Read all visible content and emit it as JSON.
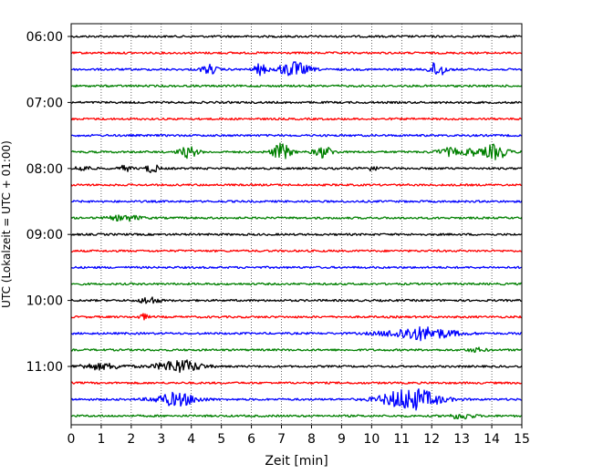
{
  "chart_data": {
    "type": "line",
    "xlabel": "Zeit  [min]",
    "ylabel": "UTC (Lokalzeit = UTC + 01:00)",
    "x_ticks": [
      "0",
      "1",
      "2",
      "3",
      "4",
      "5",
      "6",
      "7",
      "8",
      "9",
      "10",
      "11",
      "12",
      "13",
      "14",
      "15"
    ],
    "xlim": [
      0,
      15
    ],
    "y_ticks": [
      "06:00",
      "07:00",
      "08:00",
      "09:00",
      "10:00",
      "11:00"
    ],
    "trace_interval_min": 15,
    "trace_colors": [
      "#000000",
      "#ff0000",
      "#0000ff",
      "#008000"
    ],
    "grid": "vertical dotted at each minute",
    "traces": [
      {
        "start": "06:00",
        "color": "#000000",
        "bursts": []
      },
      {
        "start": "06:15",
        "color": "#ff0000",
        "bursts": []
      },
      {
        "start": "06:30",
        "color": "#0000ff",
        "bursts": [
          [
            4.6,
            0.25,
            5
          ],
          [
            6.3,
            0.2,
            6
          ],
          [
            7.4,
            0.5,
            8
          ],
          [
            12.2,
            0.25,
            9
          ]
        ]
      },
      {
        "start": "06:45",
        "color": "#008000",
        "bursts": []
      },
      {
        "start": "07:00",
        "color": "#000000",
        "bursts": []
      },
      {
        "start": "07:15",
        "color": "#ff0000",
        "bursts": []
      },
      {
        "start": "07:30",
        "color": "#0000ff",
        "bursts": []
      },
      {
        "start": "07:45",
        "color": "#008000",
        "bursts": [
          [
            3.9,
            0.3,
            6
          ],
          [
            7.0,
            0.3,
            9
          ],
          [
            8.4,
            0.3,
            6
          ],
          [
            12.6,
            0.4,
            4
          ],
          [
            13.3,
            0.2,
            4
          ],
          [
            14.1,
            0.4,
            8
          ]
        ]
      },
      {
        "start": "08:00",
        "color": "#000000",
        "bursts": [
          [
            0.4,
            0.25,
            3
          ],
          [
            1.8,
            0.2,
            3
          ],
          [
            2.7,
            0.2,
            5
          ],
          [
            10.0,
            0.3,
            2
          ]
        ]
      },
      {
        "start": "08:15",
        "color": "#ff0000",
        "bursts": []
      },
      {
        "start": "08:30",
        "color": "#0000ff",
        "bursts": []
      },
      {
        "start": "08:45",
        "color": "#008000",
        "bursts": [
          [
            1.8,
            0.5,
            3
          ]
        ]
      },
      {
        "start": "09:00",
        "color": "#000000",
        "bursts": []
      },
      {
        "start": "09:15",
        "color": "#ff0000",
        "bursts": []
      },
      {
        "start": "09:30",
        "color": "#0000ff",
        "bursts": []
      },
      {
        "start": "09:45",
        "color": "#008000",
        "bursts": []
      },
      {
        "start": "10:00",
        "color": "#000000",
        "bursts": [
          [
            2.6,
            0.3,
            4
          ]
        ]
      },
      {
        "start": "10:15",
        "color": "#ff0000",
        "bursts": [
          [
            2.4,
            0.15,
            3
          ]
        ]
      },
      {
        "start": "10:30",
        "color": "#0000ff",
        "bursts": [
          [
            11.6,
            1.1,
            7
          ]
        ]
      },
      {
        "start": "10:45",
        "color": "#008000",
        "bursts": [
          [
            13.5,
            0.3,
            2
          ]
        ]
      },
      {
        "start": "11:00",
        "color": "#000000",
        "bursts": [
          [
            1.0,
            0.8,
            3
          ],
          [
            3.6,
            0.7,
            7
          ]
        ]
      },
      {
        "start": "11:15",
        "color": "#ff0000",
        "bursts": []
      },
      {
        "start": "11:30",
        "color": "#0000ff",
        "bursts": [
          [
            3.5,
            0.7,
            7
          ],
          [
            11.3,
            0.9,
            12
          ]
        ]
      },
      {
        "start": "11:45",
        "color": "#008000",
        "bursts": [
          [
            13.0,
            0.4,
            3
          ]
        ]
      }
    ]
  }
}
